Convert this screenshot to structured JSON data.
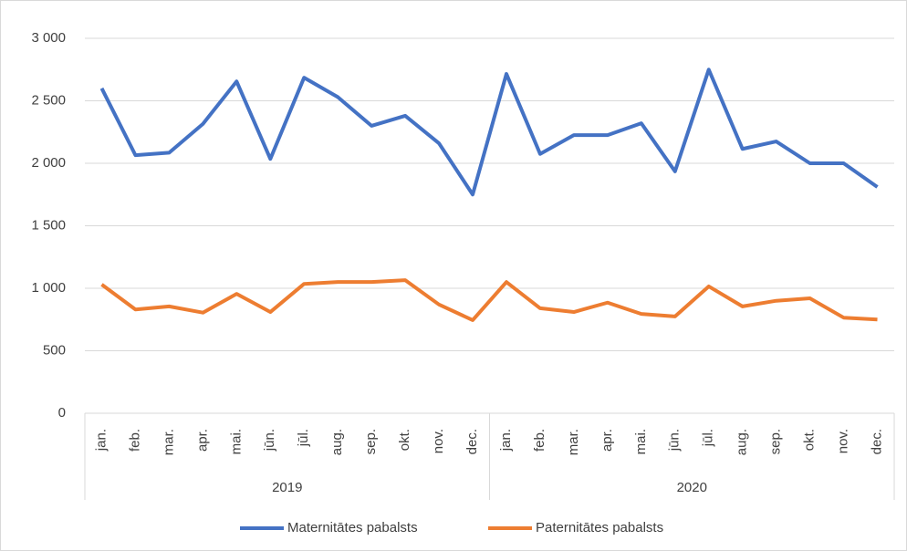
{
  "chart_data": {
    "type": "line",
    "categories": [
      "jan.",
      "feb.",
      "mar.",
      "apr.",
      "mai.",
      "jūn.",
      "jūl.",
      "aug.",
      "sep.",
      "okt.",
      "nov.",
      "dec.",
      "jan.",
      "feb.",
      "mar.",
      "apr.",
      "mai.",
      "jūn.",
      "jūl.",
      "aug.",
      "sep.",
      "okt.",
      "nov.",
      "dec."
    ],
    "groups": [
      "2019",
      "2020"
    ],
    "series": [
      {
        "name": "Maternitātes pabalsts",
        "color": "#4472c4",
        "values": [
          2600,
          2065,
          2085,
          2315,
          2655,
          2035,
          2685,
          2530,
          2300,
          2380,
          2160,
          1750,
          2715,
          2075,
          2225,
          2225,
          2320,
          1935,
          2750,
          2115,
          2175,
          2000,
          2000,
          1810
        ]
      },
      {
        "name": "Paternitātes pabalsts",
        "color": "#ed7d31",
        "values": [
          1030,
          830,
          855,
          805,
          955,
          810,
          1035,
          1050,
          1050,
          1065,
          870,
          745,
          1050,
          840,
          810,
          885,
          795,
          775,
          1015,
          855,
          900,
          920,
          765,
          750
        ]
      }
    ],
    "ylim": [
      0,
      3000
    ],
    "yticks": [
      0,
      500,
      {
        "value": 1000,
        "label": "1 000"
      },
      {
        "value": 1500,
        "label": "1 500"
      },
      {
        "value": 2000,
        "label": "2 000"
      },
      {
        "value": 2500,
        "label": "2 500"
      },
      {
        "value": 3000,
        "label": "3 000"
      }
    ],
    "grid": true,
    "legend": "bottom"
  }
}
